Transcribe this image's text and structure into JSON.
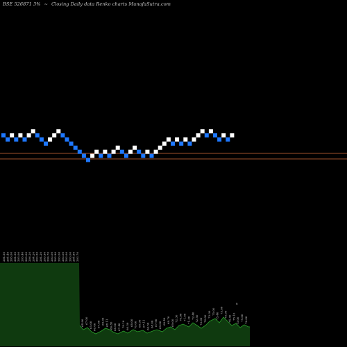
{
  "header": {
    "symbol": "BSE 526871 3%",
    "arrow": "~",
    "caption": "Closing Daily data  Renko  charts MunafaSutra.com"
  },
  "chart_data": {
    "type": "renko",
    "colors": {
      "up": "#ffffff",
      "down": "#1e78ff",
      "ref_line": "#a0522d",
      "volume_fill": "#0f3a0f",
      "volume_line": "#2aa02a",
      "label": "#cfcfcf"
    },
    "bricks": [
      {
        "c": 0,
        "r": 9,
        "d": "down"
      },
      {
        "c": 1,
        "r": 10,
        "d": "down"
      },
      {
        "c": 2,
        "r": 9,
        "d": "up"
      },
      {
        "c": 3,
        "r": 10,
        "d": "down"
      },
      {
        "c": 4,
        "r": 9,
        "d": "up"
      },
      {
        "c": 5,
        "r": 10,
        "d": "down"
      },
      {
        "c": 6,
        "r": 9,
        "d": "up"
      },
      {
        "c": 7,
        "r": 8,
        "d": "up"
      },
      {
        "c": 8,
        "r": 9,
        "d": "down"
      },
      {
        "c": 9,
        "r": 10,
        "d": "down"
      },
      {
        "c": 10,
        "r": 11,
        "d": "down"
      },
      {
        "c": 11,
        "r": 10,
        "d": "up"
      },
      {
        "c": 12,
        "r": 9,
        "d": "up"
      },
      {
        "c": 13,
        "r": 8,
        "d": "up"
      },
      {
        "c": 14,
        "r": 9,
        "d": "down"
      },
      {
        "c": 15,
        "r": 10,
        "d": "down"
      },
      {
        "c": 16,
        "r": 11,
        "d": "down"
      },
      {
        "c": 17,
        "r": 12,
        "d": "down"
      },
      {
        "c": 18,
        "r": 13,
        "d": "down"
      },
      {
        "c": 19,
        "r": 14,
        "d": "down"
      },
      {
        "c": 20,
        "r": 15,
        "d": "down"
      },
      {
        "c": 21,
        "r": 14,
        "d": "up"
      },
      {
        "c": 22,
        "r": 13,
        "d": "up"
      },
      {
        "c": 23,
        "r": 14,
        "d": "down"
      },
      {
        "c": 24,
        "r": 13,
        "d": "up"
      },
      {
        "c": 25,
        "r": 14,
        "d": "down"
      },
      {
        "c": 26,
        "r": 13,
        "d": "up"
      },
      {
        "c": 27,
        "r": 12,
        "d": "up"
      },
      {
        "c": 28,
        "r": 13,
        "d": "down"
      },
      {
        "c": 29,
        "r": 14,
        "d": "down"
      },
      {
        "c": 30,
        "r": 13,
        "d": "up"
      },
      {
        "c": 31,
        "r": 12,
        "d": "up"
      },
      {
        "c": 32,
        "r": 13,
        "d": "down"
      },
      {
        "c": 33,
        "r": 14,
        "d": "down"
      },
      {
        "c": 34,
        "r": 13,
        "d": "up"
      },
      {
        "c": 35,
        "r": 14,
        "d": "down"
      },
      {
        "c": 36,
        "r": 13,
        "d": "up"
      },
      {
        "c": 37,
        "r": 12,
        "d": "up"
      },
      {
        "c": 38,
        "r": 11,
        "d": "up"
      },
      {
        "c": 39,
        "r": 10,
        "d": "up"
      },
      {
        "c": 40,
        "r": 11,
        "d": "down"
      },
      {
        "c": 41,
        "r": 10,
        "d": "up"
      },
      {
        "c": 42,
        "r": 11,
        "d": "down"
      },
      {
        "c": 43,
        "r": 10,
        "d": "up"
      },
      {
        "c": 44,
        "r": 11,
        "d": "down"
      },
      {
        "c": 45,
        "r": 10,
        "d": "up"
      },
      {
        "c": 46,
        "r": 9,
        "d": "up"
      },
      {
        "c": 47,
        "r": 8,
        "d": "up"
      },
      {
        "c": 48,
        "r": 9,
        "d": "down"
      },
      {
        "c": 49,
        "r": 8,
        "d": "up"
      },
      {
        "c": 50,
        "r": 9,
        "d": "down"
      },
      {
        "c": 51,
        "r": 10,
        "d": "down"
      },
      {
        "c": 52,
        "r": 9,
        "d": "up"
      },
      {
        "c": 53,
        "r": 10,
        "d": "down"
      },
      {
        "c": 54,
        "r": 9,
        "d": "up"
      }
    ],
    "volume_bars": [
      {
        "x": 0,
        "v": 120
      },
      {
        "x": 114,
        "v": 120
      },
      {
        "x": 115,
        "v": 30
      },
      {
        "x": 120,
        "v": 24
      },
      {
        "x": 126,
        "v": 27
      },
      {
        "x": 132,
        "v": 21
      },
      {
        "x": 138,
        "v": 18
      },
      {
        "x": 146,
        "v": 22
      },
      {
        "x": 152,
        "v": 26
      },
      {
        "x": 158,
        "v": 24
      },
      {
        "x": 164,
        "v": 20
      },
      {
        "x": 170,
        "v": 18
      },
      {
        "x": 178,
        "v": 22
      },
      {
        "x": 184,
        "v": 19
      },
      {
        "x": 192,
        "v": 24
      },
      {
        "x": 198,
        "v": 21
      },
      {
        "x": 206,
        "v": 23
      },
      {
        "x": 212,
        "v": 19
      },
      {
        "x": 220,
        "v": 22
      },
      {
        "x": 226,
        "v": 24
      },
      {
        "x": 234,
        "v": 21
      },
      {
        "x": 240,
        "v": 26
      },
      {
        "x": 246,
        "v": 28
      },
      {
        "x": 252,
        "v": 24
      },
      {
        "x": 258,
        "v": 30
      },
      {
        "x": 264,
        "v": 32
      },
      {
        "x": 272,
        "v": 28
      },
      {
        "x": 278,
        "v": 34
      },
      {
        "x": 284,
        "v": 30
      },
      {
        "x": 290,
        "v": 26
      },
      {
        "x": 296,
        "v": 30
      },
      {
        "x": 302,
        "v": 36
      },
      {
        "x": 310,
        "v": 40
      },
      {
        "x": 316,
        "v": 34
      },
      {
        "x": 322,
        "v": 42
      },
      {
        "x": 328,
        "v": 36
      },
      {
        "x": 334,
        "v": 30
      },
      {
        "x": 340,
        "v": 33
      },
      {
        "x": 346,
        "v": 27
      },
      {
        "x": 352,
        "v": 31
      },
      {
        "x": 358,
        "v": 28
      },
      {
        "x": 360,
        "v": 28
      }
    ],
    "top_labels": [
      "204.50",
      "204.40",
      "205.00",
      "204.50",
      "205.00",
      "205.40",
      "205.60",
      "206.20",
      "204.20",
      "203.50",
      "204.20",
      "203.90",
      "206.70",
      "203.00",
      "205.90",
      "203.00",
      "203.00",
      "203.60",
      "203.00",
      "204.80",
      "203.70"
    ],
    "bottom_labels": [
      "64.80",
      "67.00",
      "65.00",
      "66.00",
      "67.00",
      "69.00",
      "68.11",
      "66.80",
      "68.00",
      "67.40",
      "70.10",
      "66.50",
      "68.00",
      "70.00",
      "68.00",
      "67.11",
      "66.50",
      "68.00",
      "67.90",
      "69.00",
      "68.40",
      "68.70",
      "69.00",
      "72.30",
      "70.90",
      "71.00",
      "71.30",
      "72.40",
      "72.50",
      "73.00",
      "72.00",
      "73.30",
      "75.00",
      "75.40",
      "73.60",
      "75.00",
      "74.30",
      "75.10",
      "73.00",
      "75.60",
      "76.00"
    ],
    "extra_label": "8"
  }
}
